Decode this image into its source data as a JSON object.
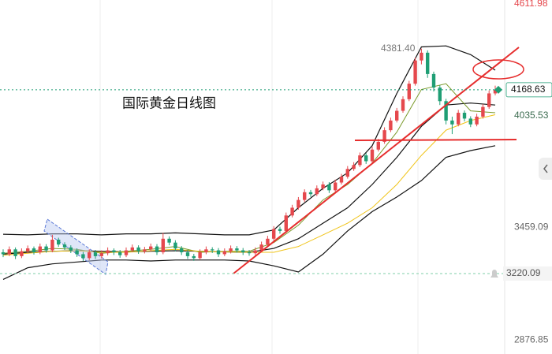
{
  "chart_data": {
    "type": "candlestick",
    "title": "国际黄金日线图",
    "ylim": [
      2805,
      4632
    ],
    "yticks": [
      4611.98,
      4035.53,
      3459.09,
      2876.85
    ],
    "up_color": "#e5484d",
    "down_color": "#1f9e74",
    "open": [
      3330,
      3320,
      3345,
      3310,
      3335,
      3350,
      3330,
      3360,
      3340,
      3395,
      3370,
      3355,
      3340,
      3320,
      3300,
      3330,
      3310,
      3325,
      3340,
      3330,
      3315,
      3340,
      3355,
      3335,
      3345,
      3360,
      3330,
      3400,
      3380,
      3350,
      3330,
      3310,
      3300,
      3330,
      3345,
      3340,
      3320,
      3335,
      3350,
      3340,
      3330,
      3325,
      3340,
      3370,
      3400,
      3450,
      3440,
      3520,
      3560,
      3600,
      3640,
      3630,
      3660,
      3680,
      3650,
      3690,
      3720,
      3760,
      3780,
      3830,
      3800,
      3860,
      3900,
      3960,
      4010,
      4060,
      4120,
      4200,
      4320,
      4360,
      4250,
      4180,
      4110,
      4010,
      3990,
      4050,
      4020,
      3990,
      4030,
      4080,
      4150
    ],
    "high": [
      3345,
      3360,
      3355,
      3350,
      3365,
      3360,
      3375,
      3372,
      3420,
      3405,
      3382,
      3366,
      3350,
      3332,
      3345,
      3342,
      3340,
      3355,
      3350,
      3342,
      3355,
      3370,
      3366,
      3358,
      3375,
      3372,
      3430,
      3412,
      3392,
      3362,
      3342,
      3322,
      3345,
      3360,
      3356,
      3352,
      3350,
      3365,
      3362,
      3352,
      3342,
      3355,
      3385,
      3415,
      3465,
      3462,
      3535,
      3575,
      3615,
      3655,
      3652,
      3675,
      3695,
      3692,
      3705,
      3735,
      3775,
      3795,
      3845,
      3842,
      3875,
      3915,
      3975,
      4025,
      4075,
      4135,
      4215,
      4335,
      4381.4,
      4372,
      4262,
      4192,
      4122,
      4030,
      4065,
      4062,
      4032,
      4045,
      4095,
      4165,
      4190
    ],
    "low": [
      3305,
      3310,
      3295,
      3300,
      3325,
      3318,
      3320,
      3328,
      3330,
      3358,
      3342,
      3326,
      3306,
      3285,
      3290,
      3296,
      3298,
      3314,
      3316,
      3302,
      3305,
      3330,
      3322,
      3324,
      3334,
      3316,
      3320,
      3366,
      3336,
      3316,
      3296,
      3286,
      3290,
      3320,
      3326,
      3306,
      3310,
      3324,
      3328,
      3316,
      3312,
      3314,
      3330,
      3360,
      3390,
      3426,
      3430,
      3510,
      3550,
      3590,
      3616,
      3620,
      3650,
      3636,
      3640,
      3680,
      3710,
      3750,
      3770,
      3786,
      3790,
      3850,
      3890,
      3950,
      4000,
      4050,
      4110,
      4190,
      4300,
      4230,
      4160,
      4090,
      3990,
      3940,
      3980,
      4006,
      3976,
      3980,
      4020,
      4070,
      4140
    ],
    "close": [
      3320,
      3345,
      3310,
      3335,
      3350,
      3330,
      3360,
      3340,
      3395,
      3370,
      3355,
      3340,
      3320,
      3300,
      3330,
      3310,
      3325,
      3340,
      3330,
      3315,
      3340,
      3355,
      3335,
      3345,
      3360,
      3330,
      3400,
      3380,
      3350,
      3330,
      3310,
      3300,
      3330,
      3345,
      3340,
      3320,
      3335,
      3350,
      3340,
      3330,
      3325,
      3340,
      3370,
      3400,
      3450,
      3440,
      3520,
      3560,
      3600,
      3640,
      3630,
      3660,
      3680,
      3650,
      3690,
      3720,
      3760,
      3780,
      3830,
      3800,
      3860,
      3900,
      3960,
      4010,
      4060,
      4120,
      4200,
      4320,
      4360,
      4250,
      4180,
      4110,
      4010,
      3990,
      4050,
      4020,
      3990,
      4030,
      4080,
      4150,
      4168.63
    ],
    "line_x": [
      0,
      4,
      8,
      12,
      16,
      20,
      24,
      28,
      32,
      36,
      40,
      44,
      48,
      52,
      56,
      60,
      64,
      68,
      72,
      76,
      80
    ],
    "lines": [
      {
        "color": "#111111",
        "values": [
          3423,
          3420,
          3425,
          3425,
          3420,
          3425,
          3425,
          3430,
          3425,
          3420,
          3420,
          3445,
          3560,
          3660,
          3740,
          3880,
          4150,
          4390,
          4395,
          4350,
          4270
        ]
      },
      {
        "color": "#111111",
        "values": [
          3190,
          3250,
          3270,
          3280,
          3290,
          3290,
          3285,
          3290,
          3290,
          3290,
          3285,
          3260,
          3228,
          3320,
          3440,
          3540,
          3615,
          3700,
          3820,
          3855,
          3880
        ]
      },
      {
        "color": "#111111",
        "values": [
          3320,
          3330,
          3335,
          3338,
          3335,
          3332,
          3335,
          3338,
          3335,
          3332,
          3330,
          3350,
          3400,
          3480,
          3560,
          3680,
          3820,
          3980,
          4090,
          4100,
          4090
        ]
      },
      {
        "color": "#7a9a2a",
        "values": [
          3325,
          3335,
          3350,
          3345,
          3325,
          3335,
          3345,
          3360,
          3330,
          3335,
          3335,
          3380,
          3470,
          3600,
          3680,
          3790,
          3950,
          4170,
          4200,
          4060,
          4050
        ]
      },
      {
        "color": "#f0c419",
        "values": [
          3315,
          3325,
          3335,
          3338,
          3330,
          3330,
          3338,
          3345,
          3335,
          3332,
          3330,
          3330,
          3360,
          3420,
          3480,
          3560,
          3680,
          3830,
          3960,
          4010,
          4040
        ]
      }
    ],
    "peak_index": 68,
    "peak": {
      "value": 4381.4,
      "label": "4381.40"
    },
    "current_price": 4168.63,
    "alert_level": 3220.09
  }
}
